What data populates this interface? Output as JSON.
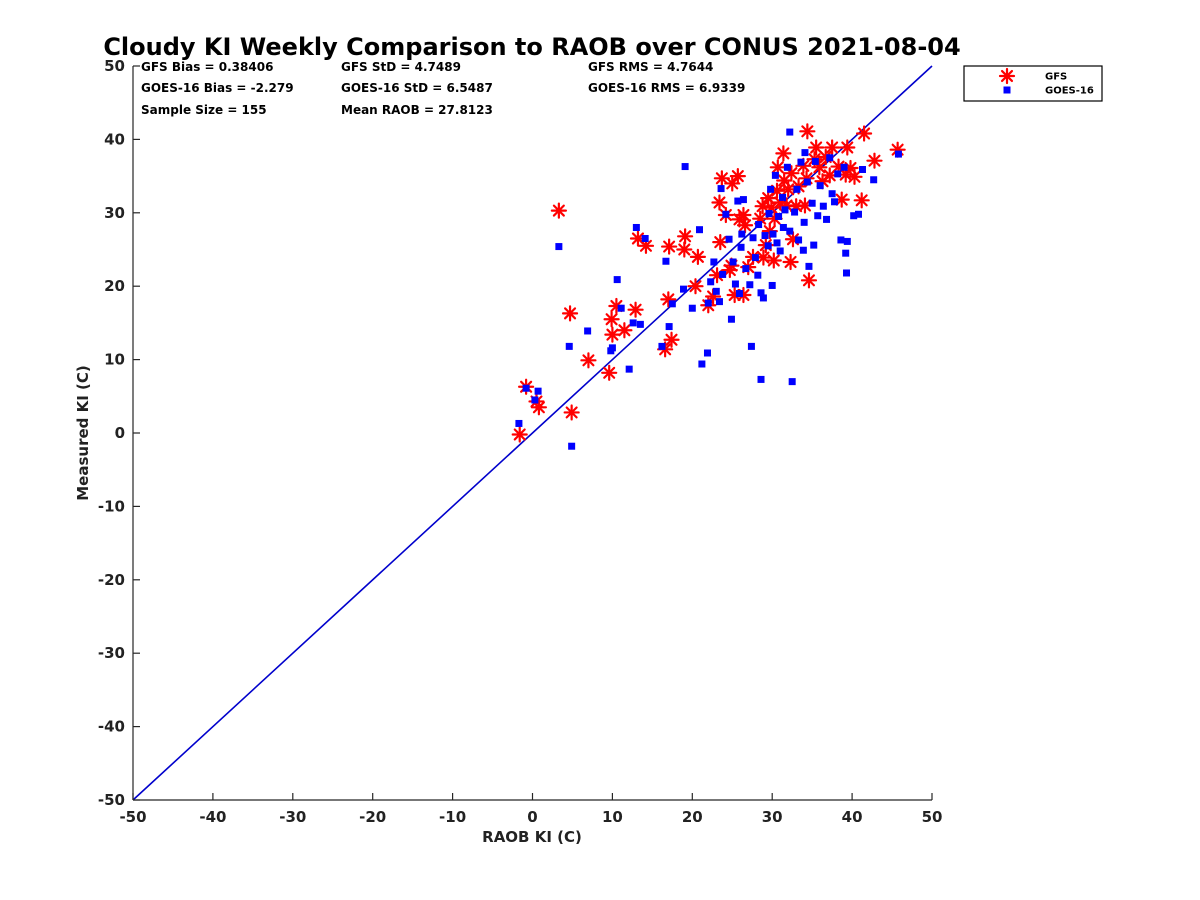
{
  "chart_data": {
    "type": "scatter",
    "title": "Cloudy KI Weekly Comparison to RAOB over CONUS 2021-08-04",
    "xlabel": "RAOB KI (C)",
    "ylabel": "Measured KI (C)",
    "xlim": [
      -50,
      50
    ],
    "ylim": [
      -50,
      50
    ],
    "xticks": [
      "-50",
      "-40",
      "-30",
      "-20",
      "-10",
      "0",
      "10",
      "20",
      "30",
      "40",
      "50"
    ],
    "yticks": [
      "-50",
      "-40",
      "-30",
      "-20",
      "-10",
      "0",
      "10",
      "20",
      "30",
      "40",
      "50"
    ],
    "grid": false,
    "legend_position": "outside-top-right",
    "reference_line": {
      "from": [
        -50,
        -50
      ],
      "to": [
        50,
        50
      ],
      "color": "#0000cc"
    },
    "stats": [
      [
        "GFS Bias = 0.38406",
        "GFS StD = 4.7489",
        "GFS RMS = 4.7644"
      ],
      [
        "GOES-16 Bias = -2.279",
        "GOES-16 StD = 6.5487",
        "GOES-16 RMS = 6.9339"
      ],
      [
        "Sample Size = 155",
        "Mean RAOB = 27.8123"
      ]
    ],
    "series": [
      {
        "name": "GFS",
        "marker": "asterisk",
        "color": "#ff0000",
        "points": [
          [
            -1.6,
            -0.2
          ],
          [
            -0.8,
            6.3
          ],
          [
            0.5,
            4.3
          ],
          [
            0.8,
            3.5
          ],
          [
            4.9,
            2.8
          ],
          [
            4.7,
            16.3
          ],
          [
            3.3,
            30.3
          ],
          [
            7.0,
            9.9
          ],
          [
            9.6,
            8.2
          ],
          [
            9.9,
            15.5
          ],
          [
            10.5,
            17.3
          ],
          [
            10.0,
            13.4
          ],
          [
            11.5,
            14.0
          ],
          [
            12.9,
            16.8
          ],
          [
            13.2,
            26.5
          ],
          [
            14.2,
            25.5
          ],
          [
            16.6,
            11.4
          ],
          [
            17.4,
            12.7
          ],
          [
            17.0,
            18.2
          ],
          [
            17.1,
            25.4
          ],
          [
            19.0,
            25.0
          ],
          [
            19.1,
            26.8
          ],
          [
            20.4,
            20.0
          ],
          [
            20.7,
            24.0
          ],
          [
            22.0,
            17.4
          ],
          [
            22.6,
            18.6
          ],
          [
            23.1,
            21.5
          ],
          [
            23.5,
            26.0
          ],
          [
            23.4,
            31.4
          ],
          [
            23.7,
            34.7
          ],
          [
            24.2,
            29.7
          ],
          [
            24.7,
            22.2
          ],
          [
            24.9,
            22.8
          ],
          [
            25.3,
            18.8
          ],
          [
            25.0,
            34.0
          ],
          [
            25.7,
            35.0
          ],
          [
            25.9,
            29.1
          ],
          [
            26.4,
            29.7
          ],
          [
            26.4,
            18.8
          ],
          [
            26.6,
            28.3
          ],
          [
            27.0,
            22.6
          ],
          [
            27.6,
            24.0
          ],
          [
            28.5,
            29.2
          ],
          [
            28.8,
            30.9
          ],
          [
            28.9,
            23.9
          ],
          [
            29.2,
            25.6
          ],
          [
            29.5,
            32.0
          ],
          [
            29.7,
            27.5
          ],
          [
            29.9,
            30.7
          ],
          [
            30.3,
            29.2
          ],
          [
            30.6,
            33.0
          ],
          [
            30.7,
            36.2
          ],
          [
            30.2,
            23.5
          ],
          [
            31.0,
            31.4
          ],
          [
            31.4,
            38.1
          ],
          [
            31.5,
            34.4
          ],
          [
            31.8,
            31.0
          ],
          [
            32.0,
            33.2
          ],
          [
            32.4,
            35.4
          ],
          [
            32.3,
            23.3
          ],
          [
            32.6,
            26.4
          ],
          [
            33.0,
            30.9
          ],
          [
            33.3,
            33.6
          ],
          [
            33.9,
            36.4
          ],
          [
            34.1,
            31.0
          ],
          [
            34.4,
            41.1
          ],
          [
            34.3,
            34.7
          ],
          [
            34.6,
            20.8
          ],
          [
            35.3,
            37.3
          ],
          [
            35.5,
            38.9
          ],
          [
            35.9,
            36.2
          ],
          [
            36.3,
            34.3
          ],
          [
            36.7,
            37.6
          ],
          [
            37.2,
            35.1
          ],
          [
            37.5,
            38.9
          ],
          [
            38.3,
            36.3
          ],
          [
            38.7,
            31.8
          ],
          [
            39.4,
            38.9
          ],
          [
            39.2,
            35.2
          ],
          [
            39.8,
            36.1
          ],
          [
            40.3,
            34.9
          ],
          [
            41.2,
            31.7
          ],
          [
            41.5,
            40.8
          ],
          [
            42.8,
            37.1
          ],
          [
            45.7,
            38.6
          ]
        ]
      },
      {
        "name": "GOES-16",
        "marker": "square",
        "color": "#0000ff",
        "points": [
          [
            -1.7,
            1.3
          ],
          [
            -0.8,
            6.1
          ],
          [
            0.3,
            4.5
          ],
          [
            0.7,
            5.7
          ],
          [
            3.3,
            25.4
          ],
          [
            4.6,
            11.8
          ],
          [
            4.9,
            -1.8
          ],
          [
            6.9,
            13.9
          ],
          [
            9.8,
            11.2
          ],
          [
            10.0,
            11.6
          ],
          [
            10.6,
            20.9
          ],
          [
            11.1,
            17.0
          ],
          [
            12.1,
            8.7
          ],
          [
            12.6,
            15.0
          ],
          [
            13.0,
            28.0
          ],
          [
            13.5,
            14.8
          ],
          [
            14.1,
            26.5
          ],
          [
            16.2,
            11.8
          ],
          [
            16.7,
            23.4
          ],
          [
            17.1,
            14.5
          ],
          [
            17.5,
            17.6
          ],
          [
            19.1,
            36.3
          ],
          [
            18.9,
            19.6
          ],
          [
            20.0,
            17.0
          ],
          [
            20.9,
            27.7
          ],
          [
            21.2,
            9.4
          ],
          [
            21.9,
            10.9
          ],
          [
            22.0,
            17.7
          ],
          [
            22.3,
            20.6
          ],
          [
            22.7,
            23.3
          ],
          [
            23.0,
            19.3
          ],
          [
            23.4,
            17.9
          ],
          [
            23.6,
            33.3
          ],
          [
            23.8,
            21.6
          ],
          [
            24.2,
            29.8
          ],
          [
            24.6,
            26.4
          ],
          [
            24.9,
            15.5
          ],
          [
            25.1,
            23.3
          ],
          [
            25.4,
            20.3
          ],
          [
            25.7,
            31.6
          ],
          [
            25.9,
            19.0
          ],
          [
            26.1,
            25.3
          ],
          [
            26.2,
            27.1
          ],
          [
            26.7,
            22.4
          ],
          [
            26.4,
            31.8
          ],
          [
            27.2,
            20.2
          ],
          [
            27.4,
            11.8
          ],
          [
            27.6,
            26.6
          ],
          [
            27.9,
            23.9
          ],
          [
            28.2,
            21.5
          ],
          [
            28.3,
            28.4
          ],
          [
            28.6,
            19.1
          ],
          [
            28.6,
            7.3
          ],
          [
            28.9,
            18.4
          ],
          [
            29.1,
            26.9
          ],
          [
            29.5,
            25.5
          ],
          [
            29.6,
            29.9
          ],
          [
            29.8,
            33.2
          ],
          [
            30.1,
            27.1
          ],
          [
            30.0,
            20.1
          ],
          [
            30.4,
            35.1
          ],
          [
            30.6,
            25.9
          ],
          [
            30.8,
            29.5
          ],
          [
            31.0,
            24.8
          ],
          [
            31.3,
            32.1
          ],
          [
            31.4,
            28.0
          ],
          [
            31.6,
            30.4
          ],
          [
            31.9,
            36.2
          ],
          [
            32.2,
            41.0
          ],
          [
            32.5,
            7.0
          ],
          [
            32.2,
            27.5
          ],
          [
            32.8,
            30.1
          ],
          [
            33.1,
            33.2
          ],
          [
            33.3,
            26.3
          ],
          [
            33.6,
            36.9
          ],
          [
            33.9,
            24.9
          ],
          [
            34.1,
            38.2
          ],
          [
            34.0,
            28.7
          ],
          [
            34.4,
            34.2
          ],
          [
            34.6,
            22.7
          ],
          [
            35.0,
            31.3
          ],
          [
            35.2,
            25.6
          ],
          [
            35.4,
            37.0
          ],
          [
            35.7,
            29.6
          ],
          [
            36.0,
            33.7
          ],
          [
            36.4,
            30.9
          ],
          [
            36.8,
            29.1
          ],
          [
            37.2,
            37.5
          ],
          [
            37.5,
            32.6
          ],
          [
            37.8,
            31.5
          ],
          [
            38.2,
            35.3
          ],
          [
            38.6,
            26.3
          ],
          [
            39.0,
            36.2
          ],
          [
            39.2,
            24.5
          ],
          [
            39.3,
            21.8
          ],
          [
            39.4,
            26.1
          ],
          [
            40.2,
            29.6
          ],
          [
            40.8,
            29.8
          ],
          [
            41.3,
            35.9
          ],
          [
            42.7,
            34.5
          ],
          [
            45.8,
            38.0
          ]
        ]
      }
    ]
  }
}
